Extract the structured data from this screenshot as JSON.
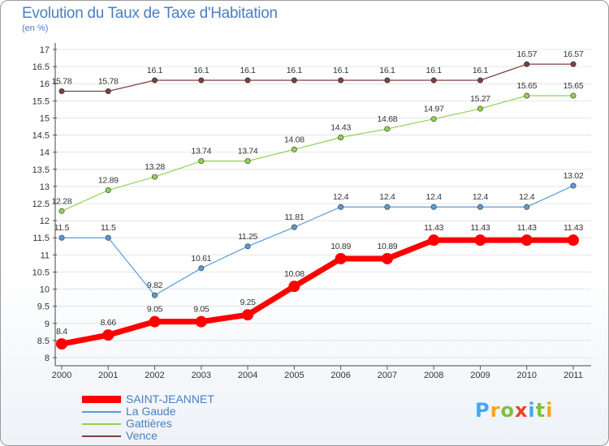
{
  "title": "Evolution du Taux de Taxe d'Habitation",
  "unit": "(en %)",
  "logo": {
    "letters": [
      "P",
      "r",
      "o",
      "x",
      "i",
      "t",
      "i"
    ],
    "colors": [
      "#3fa9f5",
      "#f5a623",
      "#7ac142",
      "#e8451e",
      "#3fa9f5",
      "#7ac142",
      "#f5a623"
    ]
  },
  "chart_data": {
    "type": "line",
    "categories": [
      "2000",
      "2001",
      "2002",
      "2003",
      "2004",
      "2005",
      "2006",
      "2007",
      "2008",
      "2009",
      "2010",
      "2011"
    ],
    "ylim": [
      8,
      17
    ],
    "yticks": [
      "8",
      "8.5",
      "9",
      "9.5",
      "10",
      "10.5",
      "11",
      "11.5",
      "12",
      "12.5",
      "13",
      "13.5",
      "14",
      "14.5",
      "15",
      "15.5",
      "16",
      "16.5",
      "17"
    ],
    "grid": "horizontal",
    "legend_position": "bottom-left",
    "series": [
      {
        "name": "SAINT-JEANNET",
        "color": "#ff0000",
        "width": "thick",
        "values": [
          8.4,
          8.66,
          9.05,
          9.05,
          9.25,
          10.08,
          10.89,
          10.89,
          11.43,
          11.43,
          11.43,
          11.43
        ],
        "labels": [
          "8.4",
          "8.66",
          "9.05",
          "9.05",
          "9.25",
          "10.08",
          "10.89",
          "10.89",
          "11.43",
          "11.43",
          "11.43",
          "11.43"
        ]
      },
      {
        "name": "La Gaude",
        "color": "#5b9bd5",
        "width": "thin",
        "values": [
          11.5,
          11.5,
          9.82,
          10.61,
          11.25,
          11.81,
          12.4,
          12.4,
          12.4,
          12.4,
          12.4,
          13.02
        ],
        "labels": [
          "11.5",
          "11.5",
          "9.82",
          "10.61",
          "11.25",
          "11.81",
          "12.4",
          "12.4",
          "12.4",
          "12.4",
          "12.4",
          "13.02"
        ]
      },
      {
        "name": "Gattières",
        "color": "#92d050",
        "width": "thin",
        "values": [
          12.28,
          12.89,
          13.28,
          13.74,
          13.74,
          14.08,
          14.43,
          14.68,
          14.97,
          15.27,
          15.65,
          15.65
        ],
        "labels": [
          "12.28",
          "12.89",
          "13.28",
          "13.74",
          "13.74",
          "14.08",
          "14.43",
          "14.68",
          "14.97",
          "15.27",
          "15.65",
          "15.65"
        ]
      },
      {
        "name": "Vence",
        "color": "#7f3f3f",
        "width": "thin",
        "values": [
          15.78,
          15.78,
          16.1,
          16.1,
          16.1,
          16.1,
          16.1,
          16.1,
          16.1,
          16.1,
          16.57,
          16.57
        ],
        "labels": [
          "15.78",
          "15.78",
          "16.1",
          "16.1",
          "16.1",
          "16.1",
          "16.1",
          "16.1",
          "16.1",
          "16.1",
          "16.57",
          "16.57"
        ]
      }
    ]
  }
}
